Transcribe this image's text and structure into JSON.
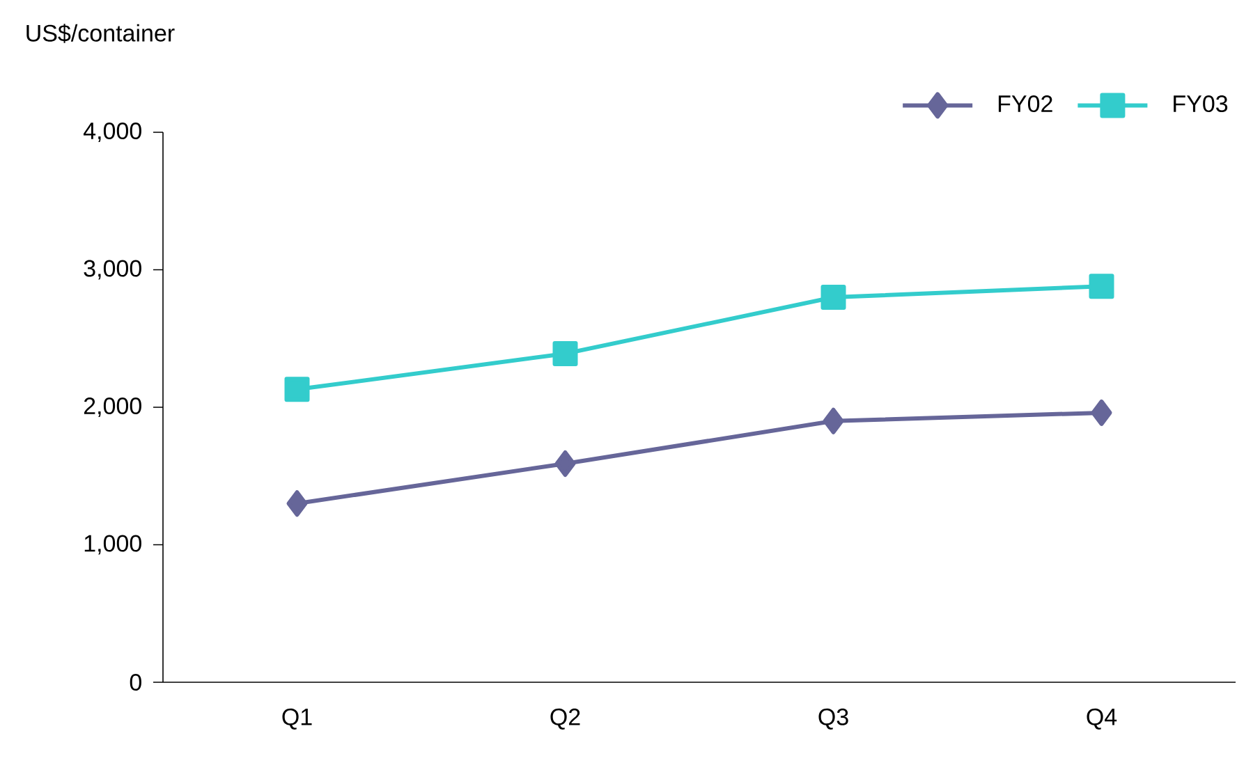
{
  "chart_data": {
    "type": "line",
    "ylabel": "US$/container",
    "categories": [
      "Q1",
      "Q2",
      "Q3",
      "Q4"
    ],
    "series": [
      {
        "name": "FY02",
        "color": "#666699",
        "marker": "diamond",
        "values": [
          1300,
          1590,
          1900,
          1960
        ]
      },
      {
        "name": "FY03",
        "color": "#33cccc",
        "marker": "square",
        "values": [
          2130,
          2390,
          2800,
          2880
        ]
      }
    ],
    "ylim": [
      0,
      4000
    ],
    "yticks": [
      0,
      {
        "value": 1000,
        "label": "1,000"
      },
      {
        "value": 2000,
        "label": "2,000"
      },
      {
        "value": 3000,
        "label": "3,000"
      },
      {
        "value": 4000,
        "label": "4,000"
      }
    ],
    "legend": "top right",
    "grid": false
  }
}
